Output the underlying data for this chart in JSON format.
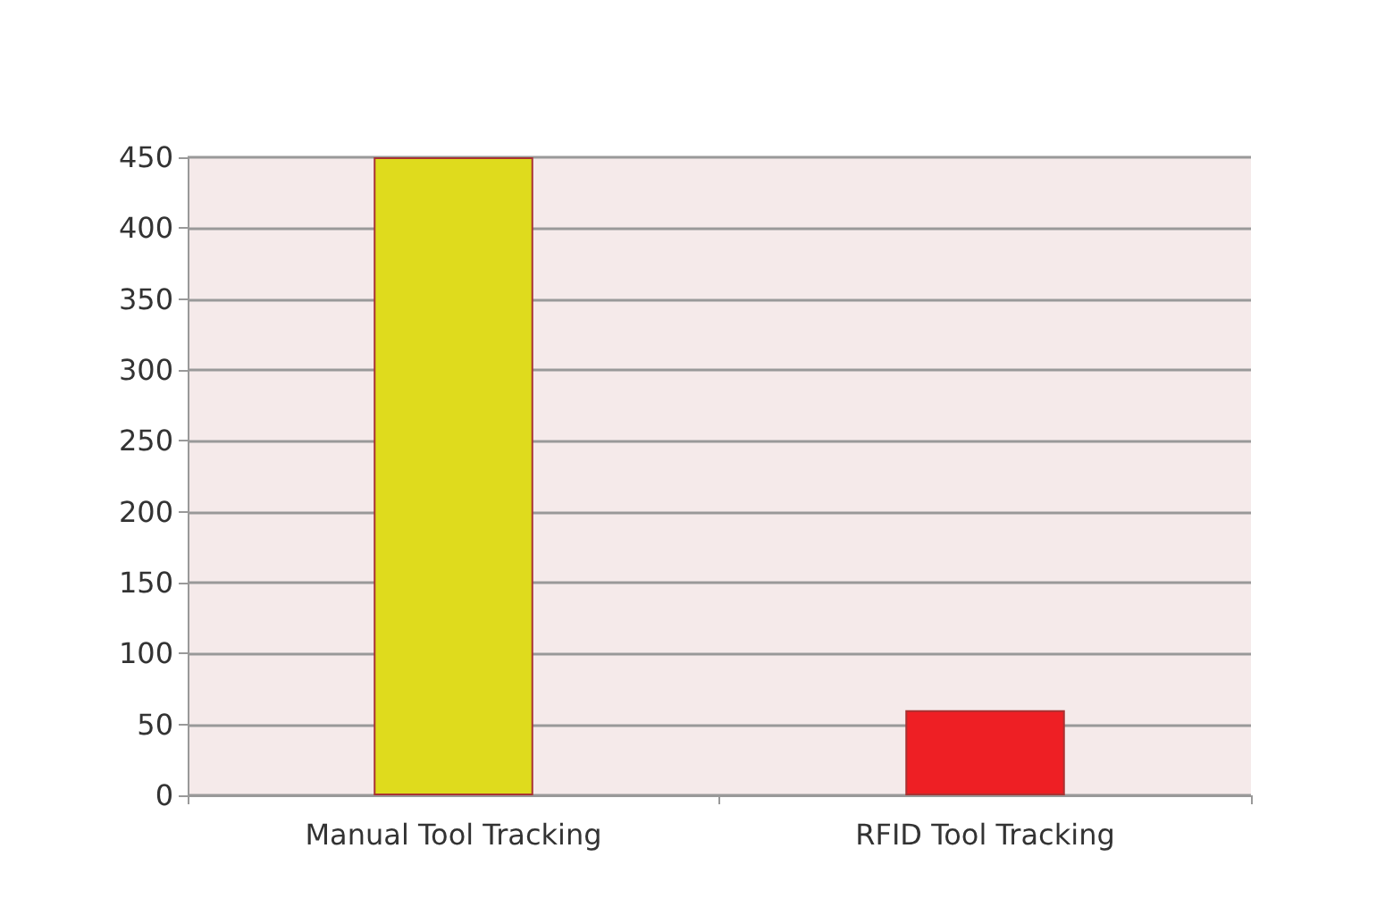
{
  "chart_data": {
    "type": "bar",
    "categories": [
      "Manual Tool Tracking",
      "RFID Tool Tracking"
    ],
    "values": [
      450,
      60
    ],
    "colors": [
      "#dfdb1d",
      "#ee1f24"
    ],
    "ylim": [
      0,
      450
    ],
    "yticks": [
      0,
      50,
      100,
      150,
      200,
      250,
      300,
      350,
      400,
      450
    ],
    "grid": "y"
  }
}
